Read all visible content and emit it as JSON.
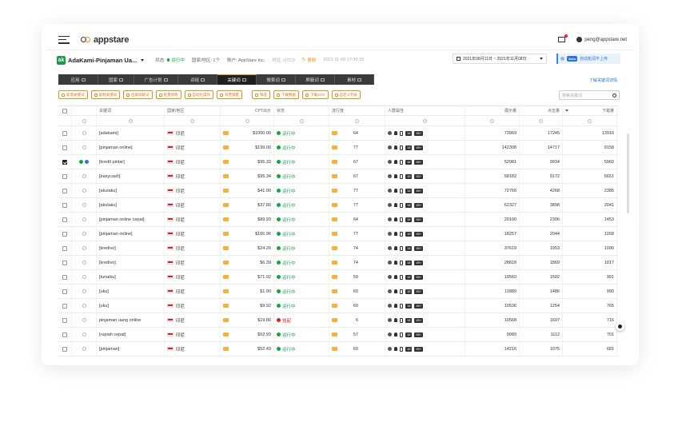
{
  "header": {
    "logo_text": "appstare",
    "user_email": "peng@appstare.net"
  },
  "appbar": {
    "app_name": "AdaKami-Pinjaman Ua...",
    "status_label": "状态:",
    "status_value": "运行中",
    "region_label": "国家/地区: 1个",
    "account_label": "账户: AppStare Inc.",
    "timezone_label": "时区: UTC0",
    "refresh_label": "更新",
    "timestamp": "2021-11-00 17:30:33",
    "date_range": "2021年08月11日 ~ 2021年11月08日",
    "auto_badge": "Auto",
    "auto_label": "自动拓词不上传"
  },
  "tabs": [
    {
      "label": "应用"
    },
    {
      "label": "国家"
    },
    {
      "label": "广告计划"
    },
    {
      "label": "词组"
    },
    {
      "label": "关键词",
      "active": true
    },
    {
      "label": "搜索词"
    },
    {
      "label": "屏蔽词"
    },
    {
      "label": "素材"
    }
  ],
  "detail_link": "了解关键词详情",
  "toolbar": [
    {
      "label": "新增关键词"
    },
    {
      "label": "复制关键词"
    },
    {
      "label": "拉取屏蔽词"
    },
    {
      "label": "批量修改"
    },
    {
      "label": "自动化操作"
    },
    {
      "label": "有营销量"
    },
    {
      "label": "筛选"
    },
    {
      "label": "下载数据"
    },
    {
      "label": "下载SOV"
    },
    {
      "label": "自定义列表"
    }
  ],
  "search_placeholder": "搜索关键词",
  "columns": {
    "keyword": "关键词",
    "region": "国家/地区",
    "cpt": "CPT出价",
    "status": "状态",
    "popularity": "流行度",
    "audience": "人群属性",
    "impressions": "展示量",
    "clicks": "点击量",
    "downloads": "下载量"
  },
  "rows": [
    {
      "keyword": "[adakami]",
      "region": "印尼",
      "cpt": "$1000.00",
      "status": "运行中",
      "pop": "64",
      "imp": "73969",
      "clk": "17245",
      "dl": "13916",
      "checked": false,
      "dots": []
    },
    {
      "keyword": "[pinjaman online]",
      "region": "印尼",
      "cpt": "$199.00",
      "status": "运行中",
      "pop": "77",
      "imp": "142308",
      "clk": "14717",
      "dl": "9158",
      "checked": false,
      "dots": []
    },
    {
      "keyword": "[kredit pintar]",
      "region": "印尼",
      "cpt": "$95.33",
      "status": "运行中",
      "pop": "67",
      "imp": "52081",
      "clk": "9934",
      "dl": "5960",
      "checked": true,
      "dots": [
        "#17a34a",
        "#2e74d8"
      ]
    },
    {
      "keyword": "[easycash]",
      "region": "印尼",
      "cpt": "$95.34",
      "status": "运行中",
      "pop": "67",
      "imp": "58182",
      "clk": "9172",
      "dl": "5651",
      "checked": false,
      "dots": []
    },
    {
      "keyword": "[akulaku]",
      "region": "印尼",
      "cpt": "$41.00",
      "status": "运行中",
      "pop": "77",
      "imp": "72766",
      "clk": "4268",
      "dl": "2385",
      "checked": false,
      "dots": []
    },
    {
      "keyword": "[akulaku]",
      "region": "印尼",
      "cpt": "$37.80",
      "status": "运行中",
      "pop": "77",
      "imp": "62327",
      "clk": "3898",
      "dl": "2041",
      "checked": false,
      "dots": []
    },
    {
      "keyword": "[pinjaman online cepat]",
      "region": "印尼",
      "cpt": "$89.93",
      "status": "运行中",
      "pop": "64",
      "imp": "20100",
      "clk": "2306",
      "dl": "1453",
      "checked": false,
      "dots": []
    },
    {
      "keyword": "[pinjaman online]",
      "region": "印尼",
      "cpt": "$166.96",
      "status": "运行中",
      "pop": "77",
      "imp": "18257",
      "clk": "2044",
      "dl": "1268",
      "checked": false,
      "dots": []
    },
    {
      "keyword": "[kredivo]",
      "region": "印尼",
      "cpt": "$24.26",
      "status": "运行中",
      "pop": "74",
      "imp": "37619",
      "clk": "1953",
      "dl": "1090",
      "checked": false,
      "dots": []
    },
    {
      "keyword": "[kredivo]",
      "region": "印尼",
      "cpt": "$6.39",
      "status": "运行中",
      "pop": "74",
      "imp": "28818",
      "clk": "1869",
      "dl": "1017",
      "checked": false,
      "dots": []
    },
    {
      "keyword": "[tunaiku]",
      "region": "印尼",
      "cpt": "$71.02",
      "status": "运行中",
      "pop": "59",
      "imp": "19560",
      "clk": "1592",
      "dl": "991",
      "checked": false,
      "dots": []
    },
    {
      "keyword": "[uku]",
      "region": "印尼",
      "cpt": "$1.90",
      "status": "运行中",
      "pop": "60",
      "imp": "11889",
      "clk": "1486",
      "dl": "990",
      "checked": false,
      "dots": []
    },
    {
      "keyword": "[uku]",
      "region": "印尼",
      "cpt": "$9.92",
      "status": "运行中",
      "pop": "60",
      "imp": "10536",
      "clk": "1254",
      "dl": "765",
      "checked": false,
      "dots": []
    },
    {
      "keyword": "pinjaman uang online",
      "region": "印尼",
      "cpt": "$19.80",
      "status": "挂起",
      "pop": "6",
      "imp": "10568",
      "clk": "1697",
      "dl": "716",
      "checked": false,
      "dots": []
    },
    {
      "keyword": "[rupiah cepat]",
      "region": "印尼",
      "cpt": "$52.93",
      "status": "运行中",
      "pop": "57",
      "imp": "9989",
      "clk": "1112",
      "dl": "701",
      "checked": false,
      "dots": []
    },
    {
      "keyword": "[pinjaman]",
      "region": "印尼",
      "cpt": "$52.43",
      "status": "运行中",
      "pop": "60",
      "imp": "14216",
      "clk": "1075",
      "dl": "681",
      "checked": false,
      "dots": []
    }
  ],
  "audience_badges": [
    "18",
    "65+"
  ],
  "colors": {
    "accent": "#f08d1c",
    "running": "#17a34a",
    "paused": "#e02020",
    "link": "#2e74d8"
  }
}
